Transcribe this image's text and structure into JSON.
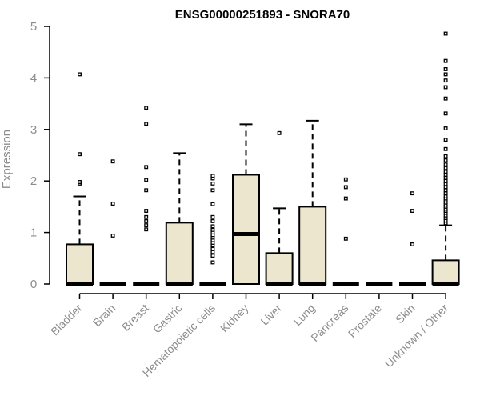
{
  "chart_data": {
    "type": "box",
    "title": "ENSG00000251893 - SNORA70",
    "ylabel": "Expression",
    "xlabel": "",
    "ylim": [
      0,
      5
    ],
    "yticks": [
      "0",
      "1",
      "2",
      "3",
      "4",
      "5"
    ],
    "grid": false,
    "legend": "none",
    "colors": {
      "box_fill": "#ede6cf",
      "stroke": "#000000",
      "axis_text": "#8c8c8c"
    },
    "categories": [
      "Bladder",
      "Brain",
      "Breast",
      "Gastric",
      "Hematopoietic cells",
      "Kidney",
      "Liver",
      "Lung",
      "Pancreas",
      "Prostate",
      "Skin",
      "Unknown / Other"
    ],
    "boxes": [
      {
        "q1": 0,
        "median": 0,
        "q3": 0.77,
        "whisker_low": 0,
        "whisker_high": 1.7,
        "outliers": [
          1.95,
          1.98,
          2.52,
          4.07
        ]
      },
      {
        "q1": 0,
        "median": 0,
        "q3": 0,
        "whisker_low": 0,
        "whisker_high": 0,
        "outliers": [
          0.94,
          1.56,
          2.38
        ]
      },
      {
        "q1": 0,
        "median": 0,
        "q3": 0,
        "whisker_low": 0,
        "whisker_high": 0,
        "outliers": [
          1.06,
          1.14,
          1.22,
          1.3,
          1.42,
          1.82,
          2.02,
          2.27,
          3.11,
          3.42
        ]
      },
      {
        "q1": 0,
        "median": 0,
        "q3": 1.19,
        "whisker_low": 0,
        "whisker_high": 2.54,
        "outliers": []
      },
      {
        "q1": 0,
        "median": 0,
        "q3": 0,
        "whisker_low": 0,
        "whisker_high": 0,
        "outliers": [
          0.42,
          0.55,
          0.62,
          0.68,
          0.75,
          0.8,
          0.85,
          0.9,
          0.95,
          1.0,
          1.05,
          1.12,
          1.22,
          1.3,
          1.55,
          1.82,
          1.95,
          2.05,
          2.1
        ]
      },
      {
        "q1": 0,
        "median": 0.97,
        "q3": 2.12,
        "whisker_low": 0,
        "whisker_high": 3.1,
        "outliers": []
      },
      {
        "q1": 0,
        "median": 0,
        "q3": 0.6,
        "whisker_low": 0,
        "whisker_high": 1.47,
        "outliers": [
          2.93
        ]
      },
      {
        "q1": 0,
        "median": 0,
        "q3": 1.5,
        "whisker_low": 0,
        "whisker_high": 3.17,
        "outliers": []
      },
      {
        "q1": 0,
        "median": 0,
        "q3": 0,
        "whisker_low": 0,
        "whisker_high": 0,
        "outliers": [
          0.88,
          1.66,
          1.88,
          2.03
        ]
      },
      {
        "q1": 0,
        "median": 0,
        "q3": 0,
        "whisker_low": 0,
        "whisker_high": 0,
        "outliers": []
      },
      {
        "q1": 0,
        "median": 0,
        "q3": 0,
        "whisker_low": 0,
        "whisker_high": 0,
        "outliers": [
          0.77,
          1.42,
          1.76
        ]
      },
      {
        "q1": 0,
        "median": 0,
        "q3": 0.46,
        "whisker_low": 0,
        "whisker_high": 1.14,
        "outliers": [
          1.18,
          1.23,
          1.28,
          1.33,
          1.38,
          1.42,
          1.46,
          1.5,
          1.54,
          1.58,
          1.62,
          1.66,
          1.7,
          1.76,
          1.82,
          1.88,
          1.94,
          2.0,
          2.06,
          2.12,
          2.18,
          2.25,
          2.32,
          2.4,
          2.48,
          2.62,
          2.8,
          3.02,
          3.31,
          3.6,
          3.82,
          3.95,
          4.07,
          4.17,
          4.33,
          4.86
        ]
      }
    ]
  }
}
